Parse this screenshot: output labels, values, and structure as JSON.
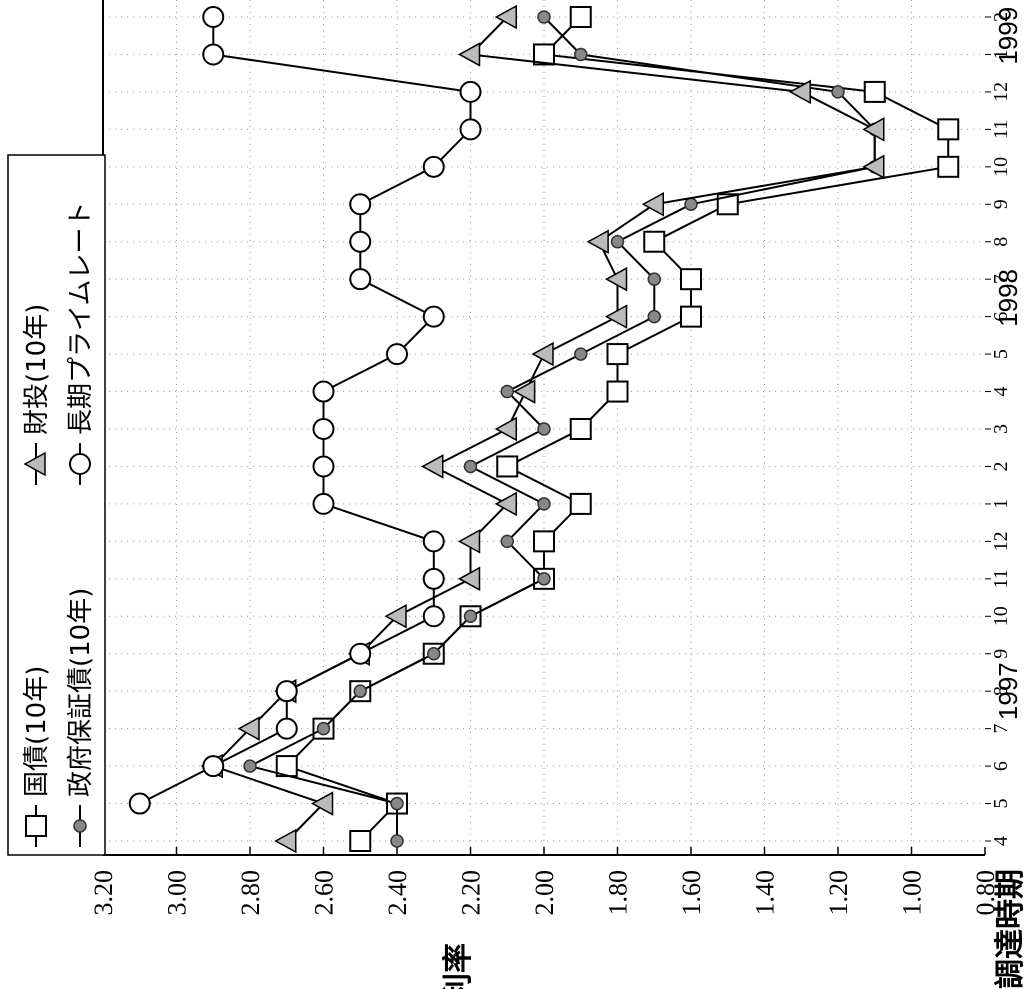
{
  "chart_data": {
    "type": "line",
    "orientation": "rotated-90-clockwise",
    "title": "",
    "ylabel": "利率",
    "xlabel": "調達時期",
    "ylim": [
      0.8,
      3.2
    ],
    "yticks": [
      "3.20",
      "3.00",
      "2.80",
      "2.60",
      "2.40",
      "2.20",
      "2.00",
      "1.80",
      "1.60",
      "1.40",
      "1.20",
      "1.00",
      "0.80"
    ],
    "grid": true,
    "legend_position": "top-left",
    "categories": [
      "4",
      "5",
      "6",
      "7",
      "8",
      "9",
      "10",
      "11",
      "12",
      "1",
      "2",
      "3",
      "4",
      "5",
      "6",
      "7",
      "8",
      "9",
      "10",
      "11",
      "12",
      "1",
      "2"
    ],
    "years": [
      {
        "label": "1997",
        "start_index": 0,
        "end_index": 8
      },
      {
        "label": "1998",
        "start_index": 9,
        "end_index": 20
      },
      {
        "label": "1999",
        "start_index": 21,
        "end_index": 22
      }
    ],
    "series": [
      {
        "name": "国債(10年)",
        "marker": "square",
        "fill": "#ffffff",
        "values": [
          2.5,
          2.4,
          2.7,
          2.6,
          2.5,
          2.3,
          2.2,
          2.0,
          2.0,
          1.9,
          2.1,
          1.9,
          1.8,
          1.8,
          1.6,
          1.6,
          1.7,
          1.5,
          0.9,
          0.9,
          1.1,
          2.0,
          1.9
        ]
      },
      {
        "name": "政府保証債(10年)",
        "marker": "dot",
        "fill": "#888888",
        "values": [
          2.4,
          2.4,
          2.8,
          2.6,
          2.5,
          2.3,
          2.2,
          2.0,
          2.1,
          2.0,
          2.2,
          2.0,
          2.1,
          1.9,
          1.7,
          1.7,
          1.8,
          1.6,
          1.1,
          1.1,
          1.2,
          1.9,
          2.0
        ]
      },
      {
        "name": "財投(10年)",
        "marker": "triangle",
        "fill": "#bbbbbb",
        "values": [
          2.7,
          2.6,
          2.9,
          2.8,
          2.7,
          2.5,
          2.4,
          2.2,
          2.2,
          2.1,
          2.3,
          2.1,
          2.05,
          2.0,
          1.8,
          1.8,
          1.85,
          1.7,
          1.1,
          1.1,
          1.3,
          2.2,
          2.1
        ]
      },
      {
        "name": "長期プライムレート",
        "marker": "circle",
        "fill": "#ffffff",
        "values": [
          null,
          3.1,
          2.9,
          2.7,
          2.7,
          2.5,
          2.3,
          2.3,
          2.3,
          2.6,
          2.6,
          2.6,
          2.6,
          2.4,
          2.3,
          2.5,
          2.5,
          2.5,
          2.3,
          2.2,
          2.2,
          2.9,
          2.9
        ]
      }
    ]
  }
}
